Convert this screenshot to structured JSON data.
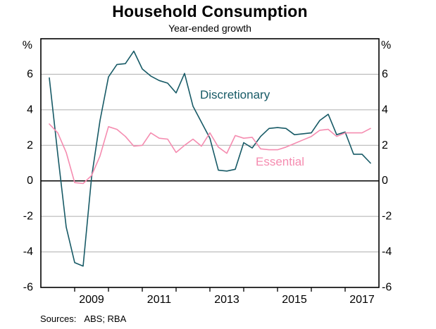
{
  "header": {
    "title": "Household Consumption",
    "subtitle": "Year-ended growth"
  },
  "axes": {
    "unit_left": "%",
    "unit_right": "%",
    "y_tick_labels": [
      "6",
      "4",
      "2",
      "0",
      "-2",
      "-4",
      "-6"
    ],
    "x_tick_labels": [
      "2009",
      "2011",
      "2013",
      "2015",
      "2017"
    ]
  },
  "annotations": {
    "discretionary_label": "Discretionary",
    "essential_label": "Essential"
  },
  "footer": {
    "sources_label": "Sources:",
    "sources_value": "ABS; RBA"
  },
  "colors": {
    "discretionary": "#175A66",
    "essential": "#F58CB0",
    "grid": "#AFAFAF",
    "axis": "#000000",
    "background": "#FFFFFF"
  },
  "chart_data": {
    "type": "line",
    "title": "Household Consumption",
    "subtitle": "Year-ended growth",
    "ylabel": "%",
    "ylim": [
      -6,
      8
    ],
    "yticks": [
      6,
      4,
      2,
      0,
      -2,
      -4,
      -6
    ],
    "x_range_years": [
      2008,
      2018
    ],
    "xtick_marks": [
      2009,
      2010,
      2011,
      2012,
      2013,
      2014,
      2015,
      2016,
      2017
    ],
    "xtick_label_years": [
      2009,
      2011,
      2013,
      2015,
      2017
    ],
    "grid": "horizontal-gray, zero-line-black",
    "legend": "inline-labels",
    "x": [
      "2008-Q1",
      "2008-Q2",
      "2008-Q3",
      "2008-Q4",
      "2009-Q1",
      "2009-Q2",
      "2009-Q3",
      "2009-Q4",
      "2010-Q1",
      "2010-Q2",
      "2010-Q3",
      "2010-Q4",
      "2011-Q1",
      "2011-Q2",
      "2011-Q3",
      "2011-Q4",
      "2012-Q1",
      "2012-Q2",
      "2012-Q3",
      "2012-Q4",
      "2013-Q1",
      "2013-Q2",
      "2013-Q3",
      "2013-Q4",
      "2014-Q1",
      "2014-Q2",
      "2014-Q3",
      "2014-Q4",
      "2015-Q1",
      "2015-Q2",
      "2015-Q3",
      "2015-Q4",
      "2016-Q1",
      "2016-Q2",
      "2016-Q3",
      "2016-Q4",
      "2017-Q1",
      "2017-Q2",
      "2017-Q3"
    ],
    "series": [
      {
        "name": "Discretionary",
        "color": "#175A66",
        "values": [
          5.8,
          1.5,
          -2.6,
          -4.6,
          -4.8,
          0.2,
          3.4,
          5.85,
          6.55,
          6.6,
          7.3,
          6.3,
          5.9,
          5.65,
          5.5,
          4.95,
          6.05,
          4.2,
          3.3,
          2.4,
          0.6,
          0.55,
          0.65,
          2.15,
          1.85,
          2.5,
          2.95,
          3.0,
          2.95,
          2.6,
          2.65,
          2.7,
          3.4,
          3.75,
          2.6,
          2.75,
          1.5,
          1.5,
          1.0
        ]
      },
      {
        "name": "Essential",
        "color": "#F58CB0",
        "values": [
          3.2,
          2.7,
          1.6,
          -0.1,
          -0.15,
          0.3,
          1.4,
          3.05,
          2.9,
          2.5,
          1.95,
          2.0,
          2.7,
          2.4,
          2.35,
          1.6,
          2.0,
          2.35,
          1.95,
          2.7,
          1.9,
          1.55,
          2.55,
          2.4,
          2.45,
          1.8,
          1.75,
          1.75,
          1.9,
          2.1,
          2.3,
          2.5,
          2.85,
          2.9,
          2.5,
          2.7,
          2.7,
          2.7,
          2.95
        ]
      }
    ]
  }
}
